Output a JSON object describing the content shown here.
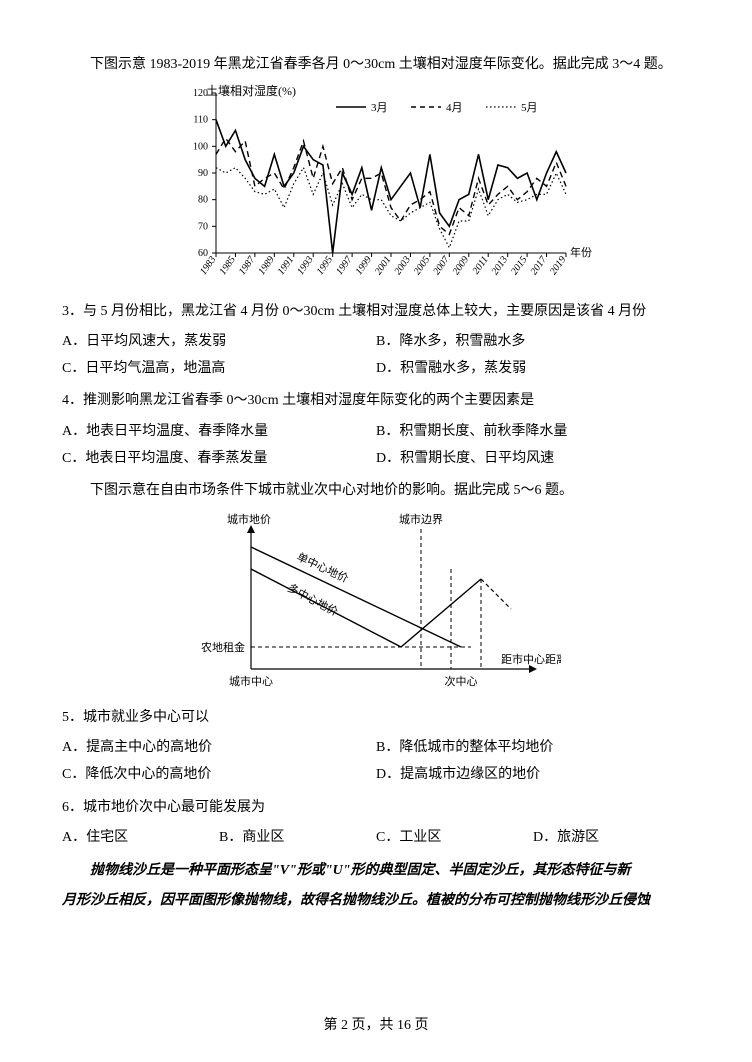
{
  "intro1": "下图示意 1983-2019 年黑龙江省春季各月 0～30cm 土壤相对湿度年际变化。据此完成 3～4 题。",
  "chart1": {
    "y_title": "土壤相对湿度(%)",
    "x_title": "年份",
    "legend": {
      "s1": "3月",
      "s2": "4月",
      "s3": "5月"
    },
    "yticks": [
      60,
      70,
      80,
      90,
      100,
      110,
      120
    ],
    "xticks": [
      "1983",
      "1985",
      "1987",
      "1989",
      "1991",
      "1993",
      "1995",
      "1997",
      "1999",
      "2001",
      "2003",
      "2005",
      "2007",
      "2009",
      "2011",
      "2013",
      "2015",
      "2017",
      "2019"
    ],
    "s1": [
      110,
      100,
      106,
      95,
      88,
      85,
      97,
      85,
      90,
      100,
      95,
      93,
      60,
      90,
      82,
      92,
      76,
      92,
      80,
      85,
      90,
      77,
      97,
      75,
      70,
      80,
      82,
      97,
      80,
      93,
      92,
      88,
      90,
      80,
      90,
      98,
      90
    ],
    "s2": [
      97,
      103,
      98,
      102,
      85,
      88,
      90,
      84,
      92,
      102,
      88,
      100,
      86,
      92,
      80,
      88,
      88,
      90,
      77,
      72,
      78,
      80,
      83,
      70,
      67,
      77,
      74,
      88,
      78,
      82,
      85,
      80,
      83,
      88,
      85,
      94,
      85
    ],
    "s3": [
      92,
      90,
      92,
      88,
      83,
      82,
      84,
      77,
      86,
      92,
      82,
      90,
      78,
      86,
      77,
      82,
      80,
      80,
      74,
      72,
      75,
      77,
      79,
      69,
      62,
      72,
      72,
      84,
      74,
      80,
      82,
      79,
      80,
      82,
      82,
      90,
      82
    ],
    "color": "#000000",
    "bg": "#ffffff",
    "fontsize": 10
  },
  "q3": {
    "stem": "3．与 5 月份相比，黑龙江省 4 月份 0～30cm 土壤相对湿度总体上较大，主要原因是该省 4 月份",
    "A": "A．日平均风速大，蒸发弱",
    "B": "B．降水多，积雪融水多",
    "C": "C．日平均气温高，地温高",
    "D": "D．积雪融水多，蒸发弱"
  },
  "q4": {
    "stem": "4．推测影响黑龙江省春季 0～30cm 土壤相对湿度年际变化的两个主要因素是",
    "A": "A．地表日平均温度、春季降水量",
    "B": "B．积雪期长度、前秋季降水量",
    "C": "C．地表日平均温度、春季蒸发量",
    "D": "D．积雪期长度、日平均风速"
  },
  "intro2": "下图示意在自由市场条件下城市就业次中心对地价的影响。据此完成 5～6 题。",
  "chart2": {
    "labels": {
      "y_title": "城市地价",
      "x_title": "距市中心距离",
      "single": "单中心地价",
      "multi": "多中心地价",
      "rent": "农地租金",
      "center": "城市中心",
      "sub": "次中心",
      "boundary": "城市边界"
    },
    "color": "#000000",
    "bg": "#ffffff",
    "fontsize": 11,
    "rotation": -25
  },
  "q5": {
    "stem": "5．城市就业多中心可以",
    "A": "A．提高主中心的高地价",
    "B": "B．降低城市的整体平均地价",
    "C": "C．降低次中心的高地价",
    "D": "D．提高城市边缘区的地价"
  },
  "q6": {
    "stem": "6．城市地价次中心最可能发展为",
    "A": "A．住宅区",
    "B": "B．商业区",
    "C": "C．工业区",
    "D": "D．旅游区"
  },
  "para1": "抛物线沙丘是一种平面形态呈\"V\"形或\"U\"形的典型固定、半固定沙丘，其形态特征与新",
  "para2": "月形沙丘相反，因平面图形像抛物线，故得名抛物线沙丘。植被的分布可控制抛物线形沙丘侵蚀",
  "footer": "第 2 页，共 16 页"
}
